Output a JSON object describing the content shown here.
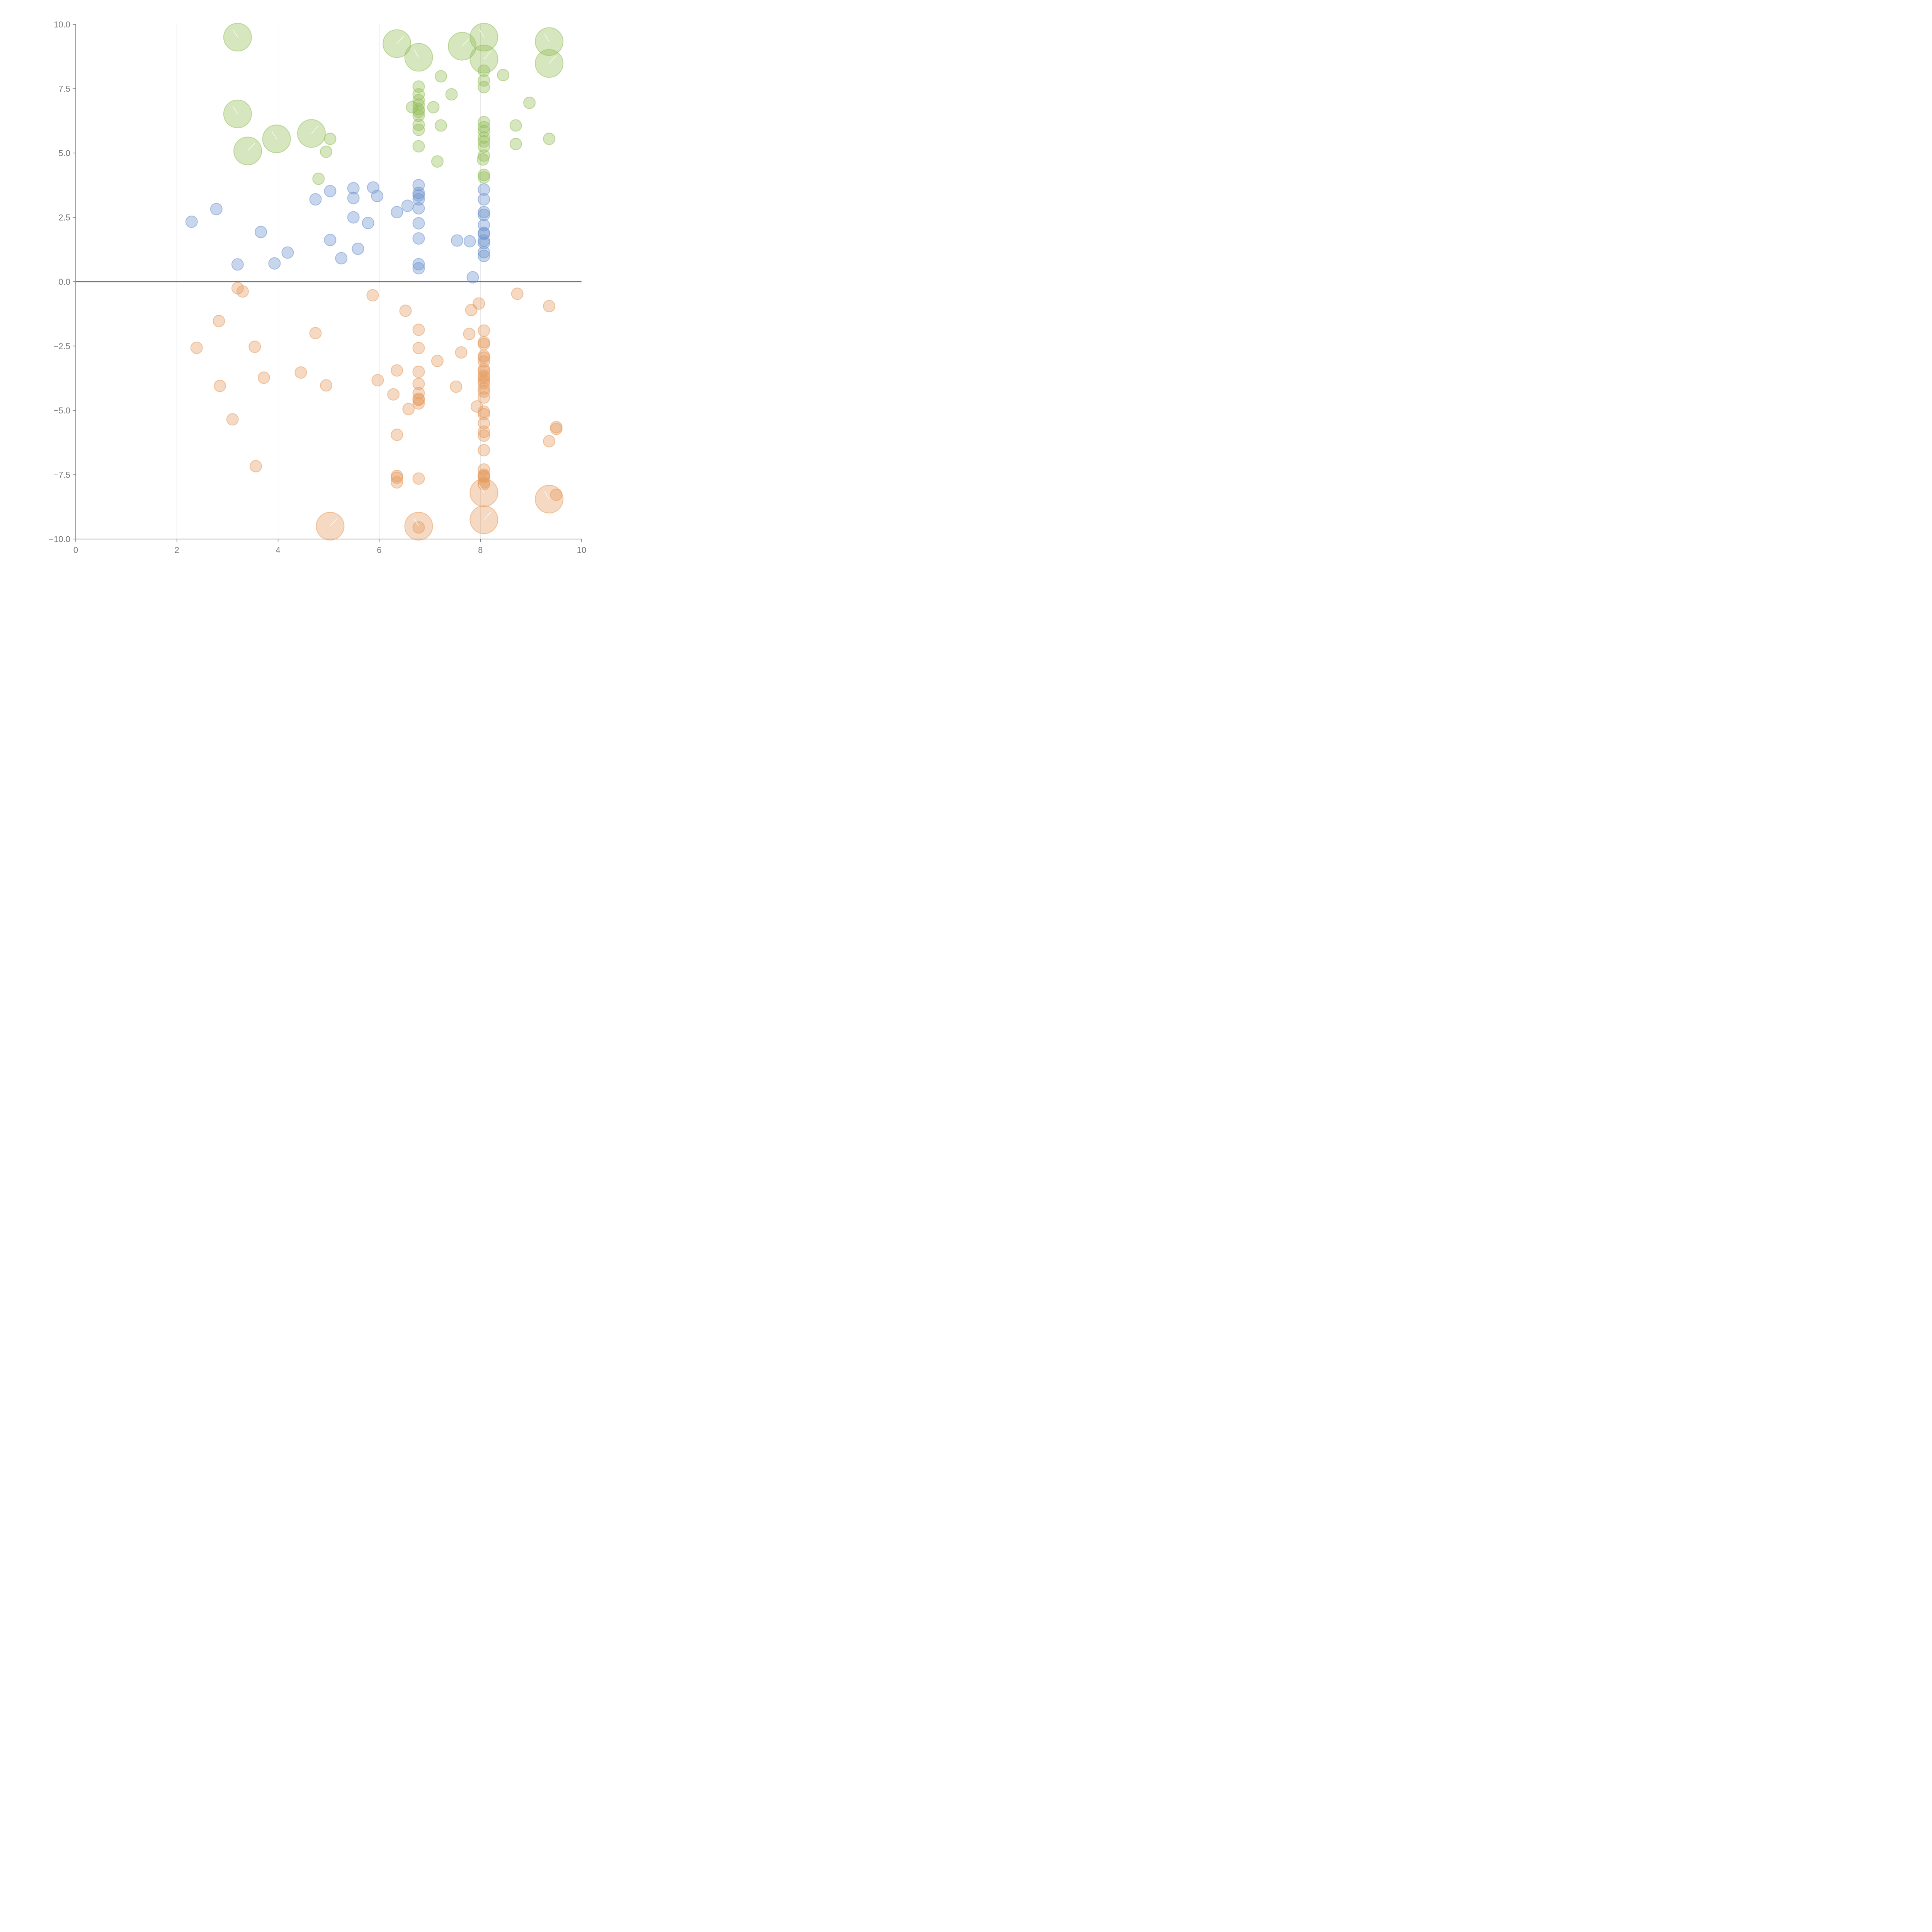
{
  "chart_data": {
    "type": "scatter",
    "title": "",
    "xlabel": "",
    "ylabel": "",
    "xlim": [
      0,
      10
    ],
    "ylim": [
      -10,
      10
    ],
    "x_ticks": [
      0,
      2,
      4,
      6,
      8,
      10
    ],
    "x_tick_labels": [
      "0",
      "2",
      "4",
      "6",
      "8",
      "10"
    ],
    "y_ticks": [
      10,
      7.5,
      5,
      2.5,
      0,
      -2.5,
      -5,
      -7.5,
      -10
    ],
    "y_tick_labels": [
      "10.0",
      "7.5",
      "5.0",
      "2.5",
      "0.0",
      "−2.5",
      "−5.0",
      "−7.5",
      "−10.0"
    ],
    "vertical_gridlines_at": [
      2,
      4,
      6,
      8
    ],
    "reference_line_y": 0,
    "marker_size_units": {
      "small": 1,
      "large": 2.4
    },
    "series": [
      {
        "name": "green",
        "color": "#93bd57",
        "points": [
          [
            3.2,
            9.5,
            2.4
          ],
          [
            6.35,
            9.25,
            2.4
          ],
          [
            6.78,
            8.72,
            2.4
          ],
          [
            7.64,
            9.15,
            2.4
          ],
          [
            8.07,
            9.5,
            2.4
          ],
          [
            8.07,
            8.65,
            2.4
          ],
          [
            9.36,
            9.33,
            2.4
          ],
          [
            9.36,
            8.48,
            2.4
          ],
          [
            3.2,
            6.52,
            2.4
          ],
          [
            3.4,
            5.08,
            2.4
          ],
          [
            3.97,
            5.55,
            2.4
          ],
          [
            4.66,
            5.76,
            2.4
          ],
          [
            7.22,
            7.98,
            1
          ],
          [
            8.45,
            8.03,
            1
          ],
          [
            8.07,
            8.2,
            1
          ],
          [
            8.07,
            7.82,
            1
          ],
          [
            8.07,
            7.56,
            1
          ],
          [
            6.78,
            7.58,
            1
          ],
          [
            6.78,
            7.28,
            1
          ],
          [
            6.78,
            7.05,
            1
          ],
          [
            6.78,
            6.88,
            1
          ],
          [
            6.78,
            6.7,
            1
          ],
          [
            6.78,
            6.6,
            1
          ],
          [
            6.78,
            6.45,
            1
          ],
          [
            6.78,
            6.1,
            1
          ],
          [
            6.78,
            5.9,
            1
          ],
          [
            6.78,
            5.26,
            1
          ],
          [
            6.65,
            6.78,
            1
          ],
          [
            7.07,
            6.78,
            1
          ],
          [
            7.43,
            7.28,
            1
          ],
          [
            7.22,
            6.07,
            1
          ],
          [
            7.15,
            4.67,
            1
          ],
          [
            8.97,
            6.95,
            1
          ],
          [
            8.7,
            6.07,
            1
          ],
          [
            8.7,
            5.35,
            1
          ],
          [
            9.36,
            5.55,
            1
          ],
          [
            8.07,
            6.2,
            1
          ],
          [
            8.07,
            6.0,
            1
          ],
          [
            8.07,
            5.85,
            1
          ],
          [
            8.07,
            5.6,
            1
          ],
          [
            8.07,
            5.45,
            1
          ],
          [
            8.07,
            5.25,
            1
          ],
          [
            8.07,
            4.9,
            1
          ],
          [
            8.05,
            4.75,
            1
          ],
          [
            8.07,
            4.15,
            1
          ],
          [
            8.07,
            4.05,
            1
          ],
          [
            5.03,
            5.55,
            1
          ],
          [
            4.95,
            5.05,
            1
          ],
          [
            4.8,
            4.0,
            1
          ]
        ]
      },
      {
        "name": "blue",
        "color": "#6b93ce",
        "points": [
          [
            2.29,
            2.33,
            1
          ],
          [
            2.78,
            2.82,
            1
          ],
          [
            3.2,
            0.67,
            1
          ],
          [
            3.66,
            1.93,
            1
          ],
          [
            3.93,
            0.71,
            1
          ],
          [
            4.19,
            1.13,
            1
          ],
          [
            4.74,
            3.2,
            1
          ],
          [
            5.03,
            3.52,
            1
          ],
          [
            5.03,
            1.62,
            1
          ],
          [
            5.25,
            0.91,
            1
          ],
          [
            5.49,
            3.63,
            1
          ],
          [
            5.49,
            3.25,
            1
          ],
          [
            5.49,
            2.5,
            1
          ],
          [
            5.58,
            1.28,
            1
          ],
          [
            5.78,
            2.28,
            1
          ],
          [
            5.88,
            3.66,
            1
          ],
          [
            5.96,
            3.33,
            1
          ],
          [
            6.35,
            2.7,
            1
          ],
          [
            6.56,
            2.95,
            1
          ],
          [
            6.78,
            3.75,
            1
          ],
          [
            6.78,
            3.45,
            1
          ],
          [
            6.78,
            3.35,
            1
          ],
          [
            6.78,
            3.2,
            1
          ],
          [
            6.78,
            2.85,
            1
          ],
          [
            6.78,
            2.27,
            1
          ],
          [
            6.78,
            1.68,
            1
          ],
          [
            6.78,
            0.68,
            1
          ],
          [
            6.78,
            0.52,
            1
          ],
          [
            7.54,
            1.6,
            1
          ],
          [
            7.79,
            1.57,
            1
          ],
          [
            7.85,
            0.17,
            1
          ],
          [
            8.07,
            3.58,
            1
          ],
          [
            8.07,
            3.2,
            1
          ],
          [
            8.07,
            2.7,
            1
          ],
          [
            8.07,
            2.6,
            1
          ],
          [
            8.07,
            2.2,
            1
          ],
          [
            8.07,
            1.9,
            1
          ],
          [
            8.07,
            1.85,
            1
          ],
          [
            8.07,
            1.6,
            1
          ],
          [
            8.07,
            1.5,
            1
          ],
          [
            8.07,
            1.15,
            1
          ],
          [
            8.07,
            1.0,
            1
          ]
        ]
      },
      {
        "name": "orange",
        "color": "#e59b5f",
        "points": [
          [
            3.2,
            -0.25,
            1
          ],
          [
            3.3,
            -0.38,
            1
          ],
          [
            2.83,
            -1.53,
            1
          ],
          [
            2.39,
            -2.57,
            1
          ],
          [
            2.85,
            -4.05,
            1
          ],
          [
            3.1,
            -5.35,
            1
          ],
          [
            3.56,
            -7.17,
            1
          ],
          [
            3.54,
            -2.53,
            1
          ],
          [
            3.72,
            -3.73,
            1
          ],
          [
            4.45,
            -3.53,
            1
          ],
          [
            4.74,
            -2.0,
            1
          ],
          [
            4.95,
            -4.03,
            1
          ],
          [
            5.87,
            -0.53,
            1
          ],
          [
            5.97,
            -3.83,
            1
          ],
          [
            6.28,
            -4.38,
            1
          ],
          [
            6.35,
            -3.45,
            1
          ],
          [
            6.35,
            -5.95,
            1
          ],
          [
            6.35,
            -7.55,
            1
          ],
          [
            6.35,
            -7.62,
            1
          ],
          [
            6.35,
            -7.8,
            1
          ],
          [
            6.52,
            -1.13,
            1
          ],
          [
            6.58,
            -4.95,
            1
          ],
          [
            6.78,
            -1.87,
            1
          ],
          [
            6.78,
            -2.58,
            1
          ],
          [
            6.78,
            -3.5,
            1
          ],
          [
            6.78,
            -3.97,
            1
          ],
          [
            6.78,
            -4.33,
            1
          ],
          [
            6.78,
            -4.55,
            1
          ],
          [
            6.78,
            -4.6,
            1
          ],
          [
            6.78,
            -4.73,
            1
          ],
          [
            6.78,
            -7.65,
            1
          ],
          [
            6.78,
            -9.55,
            1
          ],
          [
            7.15,
            -3.08,
            1
          ],
          [
            7.52,
            -4.08,
            1
          ],
          [
            7.62,
            -2.75,
            1
          ],
          [
            7.78,
            -2.03,
            1
          ],
          [
            7.82,
            -1.1,
            1
          ],
          [
            7.97,
            -0.85,
            1
          ],
          [
            7.93,
            -4.85,
            1
          ],
          [
            8.07,
            -1.9,
            1
          ],
          [
            8.07,
            -2.35,
            1
          ],
          [
            8.07,
            -2.43,
            1
          ],
          [
            8.07,
            -2.88,
            1
          ],
          [
            8.07,
            -2.95,
            1
          ],
          [
            8.07,
            -3.1,
            1
          ],
          [
            8.07,
            -3.4,
            1
          ],
          [
            8.07,
            -3.48,
            1
          ],
          [
            8.07,
            -3.65,
            1
          ],
          [
            8.07,
            -3.73,
            1
          ],
          [
            8.07,
            -3.85,
            1
          ],
          [
            8.07,
            -3.95,
            1
          ],
          [
            8.07,
            -4.15,
            1
          ],
          [
            8.07,
            -4.27,
            1
          ],
          [
            8.07,
            -4.5,
            1
          ],
          [
            8.07,
            -5.05,
            1
          ],
          [
            8.07,
            -5.15,
            1
          ],
          [
            8.07,
            -5.5,
            1
          ],
          [
            8.07,
            -5.83,
            1
          ],
          [
            8.07,
            -5.98,
            1
          ],
          [
            8.07,
            -6.55,
            1
          ],
          [
            8.07,
            -7.3,
            1
          ],
          [
            8.07,
            -7.5,
            1
          ],
          [
            8.07,
            -7.55,
            1
          ],
          [
            8.07,
            -7.6,
            1
          ],
          [
            8.07,
            -7.8,
            1
          ],
          [
            8.07,
            -7.87,
            1
          ],
          [
            8.73,
            -0.47,
            1
          ],
          [
            9.36,
            -0.95,
            1
          ],
          [
            9.36,
            -6.2,
            1
          ],
          [
            9.5,
            -5.65,
            1
          ],
          [
            9.5,
            -5.72,
            1
          ],
          [
            9.5,
            -8.28,
            1
          ],
          [
            8.07,
            -8.2,
            2.4
          ],
          [
            8.07,
            -9.25,
            2.4
          ],
          [
            9.36,
            -8.45,
            2.4
          ],
          [
            5.03,
            -9.5,
            2.4
          ],
          [
            6.78,
            -9.5,
            2.4
          ]
        ]
      }
    ]
  }
}
